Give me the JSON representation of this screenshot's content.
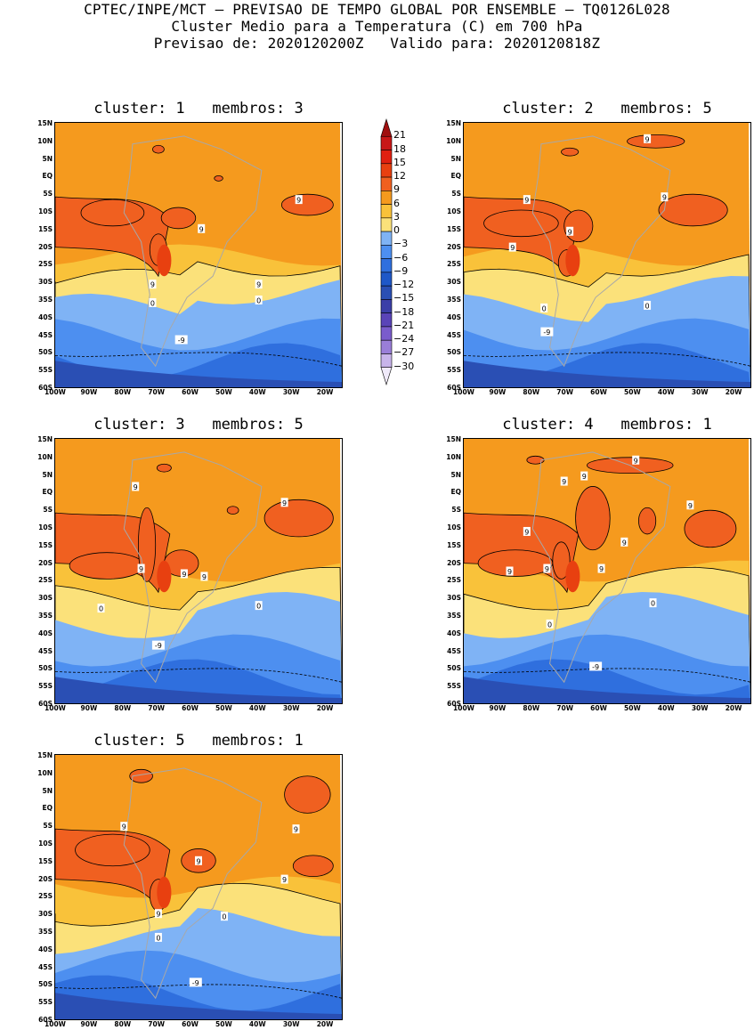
{
  "header": {
    "line1": "CPTEC/INPE/MCT – PREVISAO DE TEMPO GLOBAL POR ENSEMBLE – TQ0126L028",
    "line2": "Cluster Medio para a Temperatura (C) em 700 hPa",
    "line3": "Previsao de: 2020120200Z   Valido para: 2020120818Z"
  },
  "axes": {
    "lat_labels": [
      "15N",
      "10N",
      "5N",
      "EQ",
      "5S",
      "10S",
      "15S",
      "20S",
      "25S",
      "30S",
      "35S",
      "40S",
      "45S",
      "50S",
      "55S",
      "60S"
    ],
    "lon_labels": [
      "100W",
      "90W",
      "80W",
      "70W",
      "60W",
      "50W",
      "40W",
      "30W",
      "20W"
    ]
  },
  "colorbar": {
    "levels": [
      "21",
      "18",
      "15",
      "12",
      "9",
      "6",
      "3",
      "0",
      "-3",
      "-6",
      "-9",
      "-12",
      "-15",
      "-18",
      "-21",
      "-24",
      "-27",
      "-30"
    ],
    "colors": [
      "#a01010",
      "#c81818",
      "#e02010",
      "#e84010",
      "#f06020",
      "#f59a1e",
      "#f9c23a",
      "#fbe17a",
      "#7fb3f5",
      "#4d8ff0",
      "#2f6fde",
      "#1f58c8",
      "#2a4fb4",
      "#3b3fa8",
      "#5a44b8",
      "#7a5ccc",
      "#9a7ed8",
      "#c8b4ea",
      "#f0eafa"
    ]
  },
  "panels": [
    {
      "title": "cluster: 1   membros: 3",
      "labels": [
        "9",
        "9",
        "9",
        "9",
        "0",
        "0",
        "-9"
      ]
    },
    {
      "title": "cluster: 2   membros: 5",
      "labels": [
        "9",
        "9",
        "9",
        "9",
        "9",
        "0",
        "0",
        "-9"
      ]
    },
    {
      "title": "cluster: 3   membros: 5",
      "labels": [
        "9",
        "9",
        "9",
        "9",
        "9",
        "0",
        "0",
        "-9"
      ]
    },
    {
      "title": "cluster: 4   membros: 1",
      "labels": [
        "9",
        "9",
        "9",
        "9",
        "9",
        "9",
        "9",
        "9",
        "9",
        "0",
        "0",
        "-9"
      ]
    },
    {
      "title": "cluster: 5   membros: 1",
      "labels": [
        "9",
        "9",
        "9",
        "9",
        "9",
        "0",
        "0",
        "-9"
      ]
    }
  ]
}
